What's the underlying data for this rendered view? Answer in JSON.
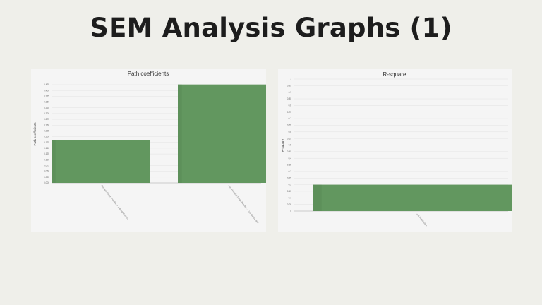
{
  "slide": {
    "title": "SEM Analysis Graphs (1)"
  },
  "colors": {
    "bar": "#62975f",
    "bar_dark": "#588a56",
    "grid": "#e2e2e2",
    "axis": "#aaaaaa"
  },
  "chart_data": [
    {
      "type": "bar",
      "title": "Path coefficients",
      "xlabel": "",
      "ylabel": "Path coefficients",
      "categories": [
        "Demand Forge Benefits -> Job Satisfaction",
        "Non-Financial Forge Benefits -> Job Satisfaction"
      ],
      "values": [
        0.185,
        0.426
      ],
      "ylim": [
        0,
        0.425
      ],
      "yticks": [
        "0.000",
        "0.025",
        "0.050",
        "0.075",
        "0.100",
        "0.125",
        "0.150",
        "0.175",
        "0.200",
        "0.225",
        "0.250",
        "0.275",
        "0.300",
        "0.325",
        "0.350",
        "0.375",
        "0.400",
        "0.425"
      ],
      "grid": true
    },
    {
      "type": "bar",
      "title": "R-square",
      "xlabel": "",
      "ylabel": "R-square",
      "categories": [
        "Job Satisfaction"
      ],
      "values": [
        0.2
      ],
      "ylim": [
        0,
        1
      ],
      "yticks": [
        "0",
        "0.05",
        "0.1",
        "0.15",
        "0.2",
        "0.25",
        "0.3",
        "0.35",
        "0.4",
        "0.45",
        "0.5",
        "0.55",
        "0.6",
        "0.65",
        "0.7",
        "0.75",
        "0.8",
        "0.85",
        "0.9",
        "0.95",
        "1"
      ],
      "grid": true
    }
  ]
}
